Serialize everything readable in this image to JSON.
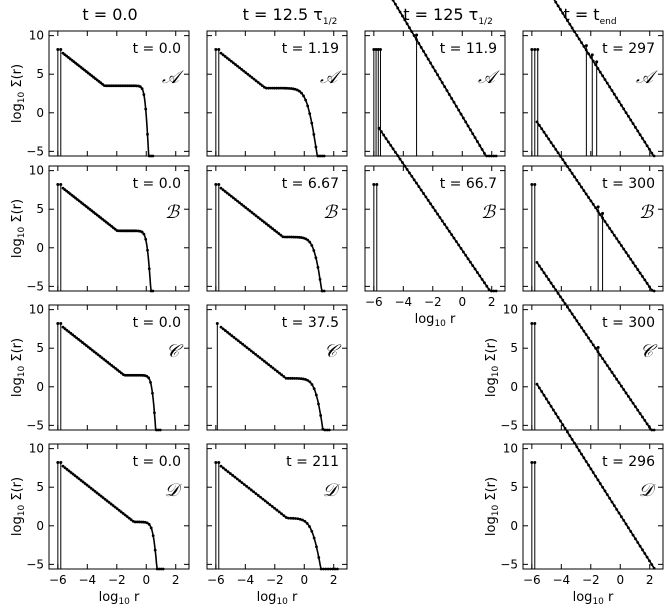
{
  "column_titles": [
    {
      "main": "t = 0.0",
      "sub": ""
    },
    {
      "main": "t = 12.5 τ",
      "sub": "1/2"
    },
    {
      "main": "t = 125 τ",
      "sub": "1/2"
    },
    {
      "main": "t = t",
      "sub": "end"
    }
  ],
  "axis_labels": {
    "x_main": "log",
    "x_sub": "10",
    "x_var": " r",
    "y_main": "log",
    "y_sub": "10",
    "y_var": " Σ(r)"
  },
  "colors": {
    "line": "#000000",
    "frame": "#000000",
    "background": "#ffffff"
  },
  "chart_data": {
    "type": "line",
    "xlim": [
      -6.6,
      2.9
    ],
    "ylim": [
      -5.6,
      10.6
    ],
    "xticks": [
      -6,
      -4,
      -2,
      0,
      2
    ],
    "yticks": [
      -5,
      0,
      5,
      10
    ],
    "grid": false,
    "panels": [
      {
        "id": "A1",
        "row": 0,
        "col": 0,
        "time": "t = 0.0",
        "model": "𝒜",
        "spikes": [
          -6.0,
          -5.8
        ],
        "rcore": -2.1,
        "bhump": 3.5,
        "rout": -0.05,
        "wout": 0.1,
        "tail": null,
        "end_x": 0.45
      },
      {
        "id": "A2",
        "row": 0,
        "col": 1,
        "time": "t = 1.19",
        "model": "𝒜",
        "spikes": [
          -6.0,
          -5.8
        ],
        "rcore": -2.3,
        "bhump": 3.2,
        "rout": 0.3,
        "wout": 0.28,
        "tail": null,
        "end_x": 1.35
      },
      {
        "id": "A3",
        "row": 0,
        "col": 2,
        "time": "t = 11.9",
        "model": "𝒜",
        "spikes": [
          -6.0,
          -5.85,
          -5.7,
          -5.55,
          -3.1
        ],
        "rcore": -4.6,
        "bhump": 1.8,
        "rout": -0.7,
        "wout": 0.25,
        "tail": 3.2,
        "end_x": 2.3
      },
      {
        "id": "A4",
        "row": 0,
        "col": 3,
        "time": "t = 297",
        "model": "𝒜",
        "spikes": [
          -6.0,
          -5.8,
          -5.6,
          -2.3,
          -1.9,
          -1.6
        ],
        "rcore": -2.0,
        "bhump": 0.3,
        "rout": 0.3,
        "wout": 0.25,
        "tail": 3.0,
        "end_x": 2.3
      },
      {
        "id": "B1",
        "row": 1,
        "col": 0,
        "time": "t = 0.0",
        "model": "ℬ",
        "spikes": [
          -6.0,
          -5.8
        ],
        "rcore": -1.9,
        "bhump": 2.2,
        "rout": 0.1,
        "wout": 0.12,
        "tail": null,
        "end_x": 0.45
      },
      {
        "id": "B2",
        "row": 1,
        "col": 1,
        "time": "t = 6.67",
        "model": "ℬ",
        "spikes": [
          -6.0,
          -5.8
        ],
        "rcore": -1.8,
        "bhump": 1.4,
        "rout": 0.8,
        "wout": 0.25,
        "tail": null,
        "end_x": 1.35
      },
      {
        "id": "B3",
        "row": 1,
        "col": 2,
        "time": "t = 66.7",
        "model": "ℬ",
        "spikes": [
          -6.0,
          -5.8
        ],
        "rcore": -3.0,
        "bhump": 0.8,
        "rout": -0.4,
        "wout": 0.3,
        "tail": 2.8,
        "end_x": 2.3
      },
      {
        "id": "B4",
        "row": 1,
        "col": 3,
        "time": "t = 300",
        "model": "ℬ",
        "spikes": [
          -6.0,
          -5.8,
          -1.5,
          -1.2
        ],
        "rcore": -2.1,
        "bhump": 0.5,
        "rout": 0.0,
        "wout": 0.25,
        "tail": 2.8,
        "end_x": 2.3
      },
      {
        "id": "C1",
        "row": 2,
        "col": 0,
        "time": "t = 0.0",
        "model": "𝒞",
        "spikes": [
          -6.0,
          -5.8
        ],
        "rcore": -1.7,
        "bhump": 1.5,
        "rout": 0.45,
        "wout": 0.12,
        "tail": null,
        "end_x": 0.95
      },
      {
        "id": "C2",
        "row": 2,
        "col": 1,
        "time": "t = 37.5",
        "model": "𝒞",
        "spikes": [
          -5.9
        ],
        "rcore": -1.8,
        "bhump": 1.1,
        "rout": 0.9,
        "wout": 0.25,
        "tail": null,
        "end_x": 1.7
      },
      {
        "id": "C4",
        "row": 2,
        "col": 3,
        "time": "t = 300",
        "model": "𝒞",
        "spikes": [
          -6.0,
          -5.8,
          -1.5
        ],
        "rcore": -1.9,
        "bhump": 0.3,
        "rout": 0.0,
        "wout": 0.25,
        "tail": 2.8,
        "end_x": 2.3
      },
      {
        "id": "D1",
        "row": 3,
        "col": 0,
        "time": "t = 0.0",
        "model": "𝒟",
        "spikes": [
          -6.0,
          -5.8
        ],
        "rcore": -2.2,
        "bhump": 0.5,
        "rout": 0.55,
        "wout": 0.14,
        "tail": null,
        "end_x": 1.15
      },
      {
        "id": "D2",
        "row": 3,
        "col": 1,
        "time": "t = 211",
        "model": "𝒟",
        "spikes": [
          -6.0,
          -5.8
        ],
        "rcore": -1.8,
        "bhump": 1.0,
        "rout": 0.7,
        "wout": 0.3,
        "tail": null,
        "end_x": 2.25
      },
      {
        "id": "D4",
        "row": 3,
        "col": 3,
        "time": "t = 296",
        "model": "𝒟",
        "spikes": [
          -6.0,
          -5.8
        ],
        "rcore": -2.1,
        "bhump": 0.2,
        "rout": 0.4,
        "wout": 0.25,
        "tail": 3.0,
        "end_x": 2.3
      }
    ]
  }
}
